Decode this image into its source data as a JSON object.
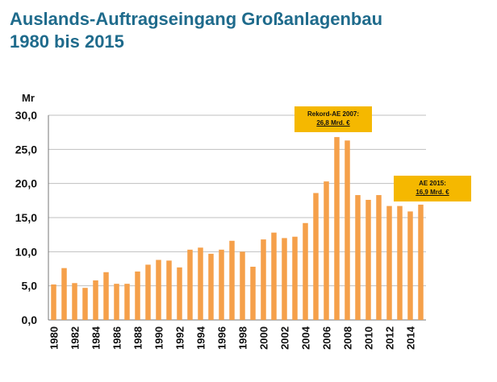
{
  "title_line1": "Auslands-Auftragseingang Großanlagenbau",
  "title_line2": "1980 bis 2015",
  "chart_data": {
    "type": "bar",
    "ylabel": "Mr",
    "ylim": [
      0,
      30
    ],
    "yticks": [
      "0,0",
      "5,0",
      "10,0",
      "15,0",
      "20,0",
      "25,0",
      "30,0"
    ],
    "grid": "horizontal",
    "bar_color": "#f5a04a",
    "categories": [
      "1980",
      "1981",
      "1982",
      "1983",
      "1984",
      "1985",
      "1986",
      "1987",
      "1988",
      "1989",
      "1990",
      "1991",
      "1992",
      "1993",
      "1994",
      "1995",
      "1996",
      "1997",
      "1998",
      "1999",
      "2000",
      "2001",
      "2002",
      "2003",
      "2004",
      "2005",
      "2006",
      "2007",
      "2008",
      "2009",
      "2010",
      "2011",
      "2012",
      "2013",
      "2014",
      "2015"
    ],
    "xtick_labels": [
      "1980",
      "",
      "1982",
      "",
      "1984",
      "",
      "1986",
      "",
      "1988",
      "",
      "1990",
      "",
      "1992",
      "",
      "1994",
      "",
      "1996",
      "",
      "1998",
      "",
      "2000",
      "",
      "2002",
      "",
      "2004",
      "",
      "2006",
      "",
      "2008",
      "",
      "2010",
      "",
      "2012",
      "",
      "2014",
      ""
    ],
    "values": [
      5.2,
      7.6,
      5.4,
      4.7,
      5.8,
      7.0,
      5.3,
      5.3,
      7.1,
      8.1,
      8.8,
      8.7,
      7.7,
      10.3,
      10.6,
      9.7,
      10.3,
      11.6,
      10.0,
      7.8,
      11.8,
      12.8,
      12.0,
      12.2,
      14.2,
      18.6,
      20.3,
      26.8,
      26.3,
      18.3,
      17.6,
      18.3,
      16.7,
      16.7,
      15.9,
      16.9
    ],
    "annotations": [
      {
        "label": "Rekord-AE 2007:",
        "value": "26,8 Mrd. €"
      },
      {
        "label": "AE 2015:",
        "value": "16,9 Mrd. €"
      }
    ]
  }
}
